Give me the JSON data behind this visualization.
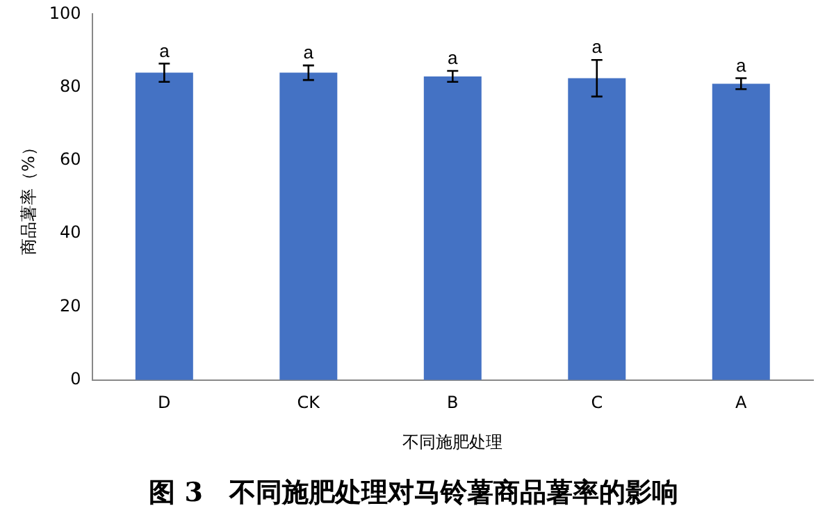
{
  "chart_data": {
    "type": "bar",
    "title": "图 3　不同施肥处理对马铃薯商品薯率的影响",
    "xlabel": "不同施肥处理",
    "ylabel": "商品薯率（%）",
    "categories": [
      "D",
      "CK",
      "B",
      "C",
      "A"
    ],
    "values": [
      84,
      84,
      83,
      82.5,
      81
    ],
    "errors": [
      2.5,
      2,
      1.5,
      5,
      1.5
    ],
    "color": "#4472c4",
    "ylim": [
      0,
      100
    ],
    "yticks": [
      0,
      20,
      40,
      60,
      80,
      100
    ],
    "grid": false,
    "legend": false,
    "annotations": [
      {
        "text": "a",
        "x": "D",
        "y": 86.5
      },
      {
        "text": "a",
        "x": "CK",
        "y": 86
      },
      {
        "text": "a",
        "x": "B",
        "y": 84.5
      },
      {
        "text": "a",
        "x": "C",
        "y": 87.5
      },
      {
        "text": "a",
        "x": "A",
        "y": 82.5
      }
    ]
  }
}
